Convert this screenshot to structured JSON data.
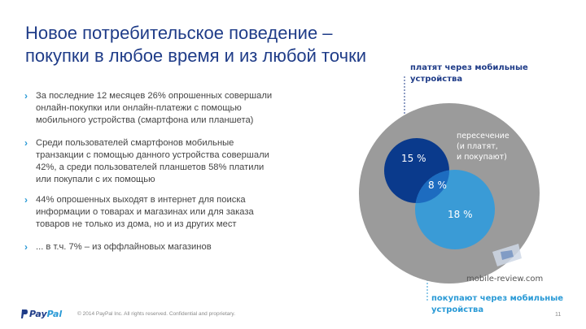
{
  "slide": {
    "title_line1": "Новое потребительское поведение –",
    "title_line2": "покупки в любое время и из любой точки",
    "bullets": [
      {
        "text": "За последние 12 месяцев 26% опрошенных совершали\nонлайн-покупки или онлайн-платежи с помощью\nмобильного устройства (смартфона или планшета)"
      },
      {
        "text": "Среди пользователей смартфонов мобильные\nтранзакции с помощью данного устройства совершали\n42%, а среди пользователей планшетов 58% платили\nили покупали с их помощью"
      },
      {
        "text": "44% опрошенных выходят в интернет для поиска\nинформации о товарах и магазинах или для заказа\nтоваров не только из дома, но и из других мест"
      },
      {
        "text": "... в т.ч. 7% – из оффлайновых магазинов"
      }
    ],
    "bullet_glyph": "›"
  },
  "diagram": {
    "label_top": "платят через мобильные\nустройства",
    "label_intersection": "пересечение\n(и платят,\nи покупают)",
    "label_bottom": "покупают через мобильные\nустройства",
    "values": {
      "pay": "15 %",
      "both": "8 %",
      "buy": "18 %"
    },
    "colors": {
      "outer": "#9b9b9b",
      "pay": "#0a3a8c",
      "buy": "#3a9bd6",
      "overlap": "#1d6cc0",
      "leader_top": "#1f3c88",
      "leader_bottom": "#2a9ad6"
    }
  },
  "watermark": {
    "text": "mobile-review.com"
  },
  "footer": {
    "logo_pay": "Pay",
    "logo_pal": "Pal",
    "copyright": "© 2014 PayPal Inc. All rights reserved. Confidential and proprietary.",
    "page_number": "11"
  }
}
